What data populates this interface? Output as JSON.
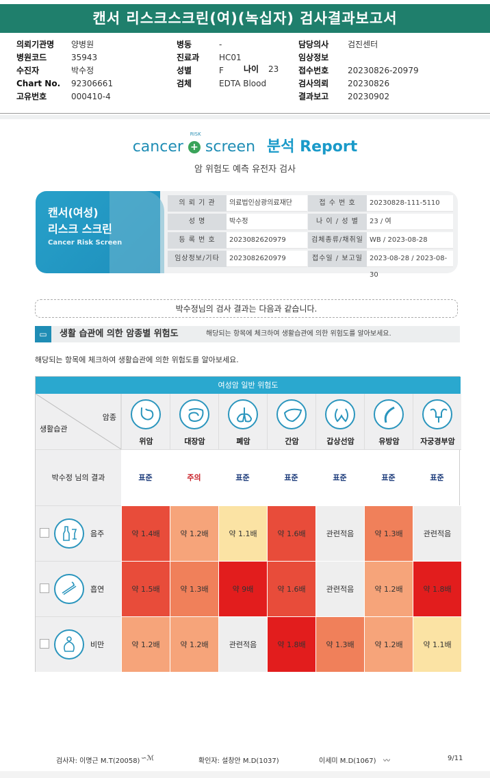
{
  "title": "캔서 리스크스크린(여)(녹십자) 검사결과보고서",
  "header": {
    "col1": [
      {
        "label": "의뢰기관명",
        "value": "양병원"
      },
      {
        "label": "병원코드",
        "value": "35943"
      },
      {
        "label": "수진자",
        "value": "박수정"
      },
      {
        "label": "Chart No.",
        "value": "92306661"
      },
      {
        "label": "고유번호",
        "value": "000410-4"
      }
    ],
    "col2": [
      {
        "label": "병동",
        "value": "-"
      },
      {
        "label": "진료과",
        "value": "HC01"
      },
      {
        "label": "성별",
        "value": "F"
      },
      {
        "label": "검체",
        "value": "EDTA Blood"
      }
    ],
    "age_label": "나이",
    "age_value": "23",
    "col3": [
      {
        "label": "담당의사",
        "value": "검진센터"
      },
      {
        "label": "임상정보",
        "value": ""
      },
      {
        "label": "접수번호",
        "value": "20230826-20979"
      },
      {
        "label": "검사의뢰",
        "value": "20230826"
      },
      {
        "label": "결과보고",
        "value": "20230902"
      }
    ]
  },
  "logo": {
    "cancer": "cancer",
    "risk": "RISK",
    "screen": "screen",
    "report": "분석 Report"
  },
  "subtitle": "암 위험도 예측 유전자 검사",
  "card": {
    "title1": "캔서(여성)",
    "title2": "리스크 스크린",
    "title3": "Cancer Risk Screen",
    "rows": [
      {
        "k1": "의 뢰 기 관",
        "v1": "의료법인삼광의료재단",
        "k2": "접 수 번 호",
        "v2": "20230828-111-5110"
      },
      {
        "k1": "성 명",
        "v1": "박수정",
        "k2": "나 이 / 성 별",
        "v2": "23 / 여"
      },
      {
        "k1": "등 록 번 호",
        "v1": "2023082620979",
        "k2": "검체종류/채취일",
        "v2": "WB / 2023-08-28"
      },
      {
        "k1": "임상정보/기타",
        "v1": "2023082620979",
        "k2": "접수일 / 보고일",
        "v2": "2023-08-28 / 2023-08-30"
      }
    ]
  },
  "result_text": "박수정님의 검사 결과는 다음과 같습니다.",
  "section": {
    "title": "생활 습관에 의한 암종별 위험도",
    "desc": "해당되는 항목에 체크하여 생활습관에 의한 위험도를 알아보세요."
  },
  "note": "해당되는 항목에 체크하여 생활습관에 의한 위험도를 알아보세요.",
  "table": {
    "header": "여성암 일반 위험도",
    "corner_top": "암종",
    "corner_bottom": "생활습관",
    "cancers": [
      {
        "name": "위암",
        "icon": "stomach-icon"
      },
      {
        "name": "대장암",
        "icon": "intestine-icon"
      },
      {
        "name": "폐암",
        "icon": "lung-icon"
      },
      {
        "name": "간암",
        "icon": "liver-icon"
      },
      {
        "name": "갑상선암",
        "icon": "thyroid-icon"
      },
      {
        "name": "유방암",
        "icon": "breast-icon"
      },
      {
        "name": "자궁경부암",
        "icon": "uterus-icon"
      }
    ],
    "result_label": "박수정 님의 결과",
    "results": [
      "표준",
      "주의",
      "표준",
      "표준",
      "표준",
      "표준",
      "표준"
    ],
    "result_colors": [
      "#1b3a7a",
      "#c81d25",
      "#1b3a7a",
      "#1b3a7a",
      "#1b3a7a",
      "#1b3a7a",
      "#1b3a7a"
    ],
    "habits": [
      {
        "name": "음주",
        "icon": "alcohol-icon",
        "cells": [
          "약 1.4배",
          "약 1.2배",
          "약 1.1배",
          "약 1.6배",
          "관련적음",
          "약 1.3배",
          "관련적음"
        ],
        "colors": [
          "#e84c3a",
          "#f6a47a",
          "#fbe3a4",
          "#e84c3a",
          "#eeeeee",
          "#f0805a",
          "#eeeeee"
        ]
      },
      {
        "name": "흡연",
        "icon": "smoking-icon",
        "cells": [
          "약 1.5배",
          "약 1.3배",
          "약 9배",
          "약 1.6배",
          "관련적음",
          "약 1.2배",
          "약 1.8배"
        ],
        "colors": [
          "#e84c3a",
          "#f0805a",
          "#e21d1d",
          "#e84c3a",
          "#eeeeee",
          "#f6a47a",
          "#e21d1d"
        ]
      },
      {
        "name": "비만",
        "icon": "obesity-icon",
        "cells": [
          "약 1.2배",
          "약 1.2배",
          "관련적음",
          "약 1.8배",
          "약 1.3배",
          "약 1.2배",
          "약 1.1배"
        ],
        "colors": [
          "#f6a47a",
          "#f6a47a",
          "#eeeeee",
          "#e21d1d",
          "#f0805a",
          "#f6a47a",
          "#fbe3a4"
        ]
      }
    ]
  },
  "footer": {
    "tester": "검사자: 이명근 M.T(20058)",
    "confirmer": "확인자: 설창안 M.D(1037)",
    "doctor2": "이세미 M.D(1067)",
    "page": "9/11"
  }
}
